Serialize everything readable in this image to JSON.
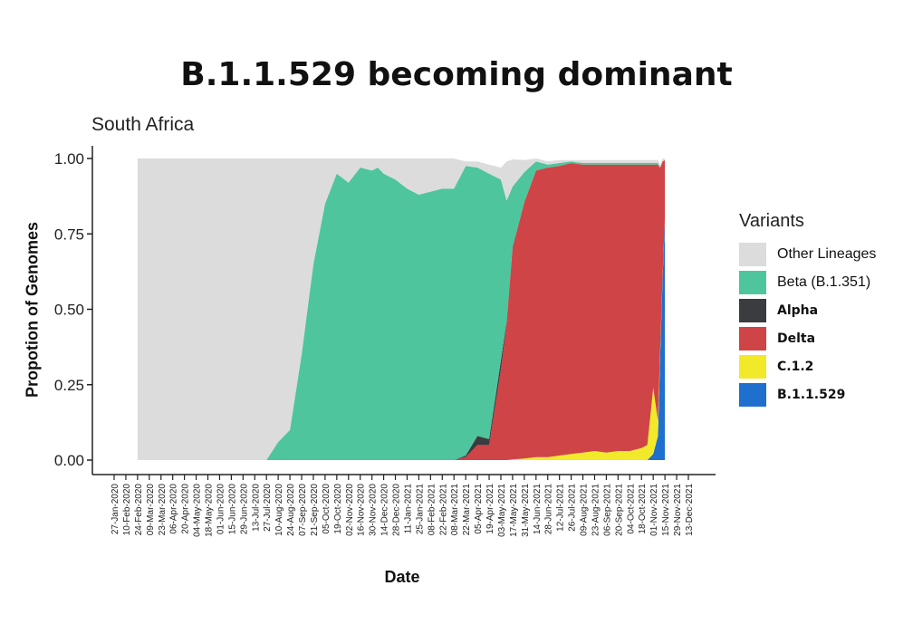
{
  "page": {
    "title": "B.1.1.529 becoming dominant"
  },
  "chart_data": {
    "type": "area",
    "title": "South Africa",
    "xlabel": "Date",
    "ylabel": "Propotion of Genomes",
    "ylim": [
      0,
      1
    ],
    "y_ticks": [
      "0.00",
      "0.25",
      "0.50",
      "0.75",
      "1.00"
    ],
    "x_ticks": [
      "27-Jan-2020",
      "10-Feb-2020",
      "24-Feb-2020",
      "09-Mar-2020",
      "23-Mar-2020",
      "06-Apr-2020",
      "20-Apr-2020",
      "04-May-2020",
      "18-May-2020",
      "01-Jun-2020",
      "15-Jun-2020",
      "29-Jun-2020",
      "13-Jul-2020",
      "27-Jul-2020",
      "10-Aug-2020",
      "24-Aug-2020",
      "07-Sep-2020",
      "21-Sep-2020",
      "05-Oct-2020",
      "19-Oct-2020",
      "02-Nov-2020",
      "16-Nov-2020",
      "30-Nov-2020",
      "14-Dec-2020",
      "28-Dec-2020",
      "11-Jan-2021",
      "25-Jan-2021",
      "08-Feb-2021",
      "22-Feb-2021",
      "08-Mar-2021",
      "22-Mar-2021",
      "05-Apr-2021",
      "19-Apr-2021",
      "03-May-2021",
      "17-May-2021",
      "31-May-2021",
      "14-Jun-2021",
      "28-Jun-2021",
      "12-Jul-2021",
      "26-Jul-2021",
      "09-Aug-2021",
      "23-Aug-2021",
      "06-Sep-2021",
      "20-Sep-2021",
      "04-Oct-2021",
      "18-Oct-2021",
      "01-Nov-2021",
      "15-Nov-2021",
      "29-Nov-2021",
      "13-Dec-2021"
    ],
    "legend_title": "Variants",
    "legend_position": "right",
    "grid": false,
    "x": [
      2,
      13,
      14,
      15,
      16,
      17,
      18,
      19,
      20,
      21,
      22,
      22.5,
      23,
      24,
      25,
      26,
      27,
      28,
      29,
      30,
      31,
      32,
      33,
      33.5,
      34,
      35,
      36,
      37,
      38,
      39,
      40,
      41,
      42,
      43,
      44,
      45,
      45.5,
      46,
      46.4,
      46.6,
      46.8,
      47
    ],
    "series": [
      {
        "name": "B.1.1.529",
        "color": "#1f6fcf",
        "values": [
          0,
          0,
          0,
          0,
          0,
          0,
          0,
          0,
          0,
          0,
          0,
          0,
          0,
          0,
          0,
          0,
          0,
          0,
          0,
          0,
          0,
          0,
          0,
          0,
          0,
          0,
          0,
          0,
          0,
          0,
          0,
          0,
          0,
          0,
          0,
          0,
          0,
          0.02,
          0.08,
          0.35,
          0.6,
          0.8
        ]
      },
      {
        "name": "C.1.2",
        "color": "#f2e92b",
        "values": [
          0,
          0,
          0,
          0,
          0,
          0,
          0,
          0,
          0,
          0,
          0,
          0,
          0,
          0,
          0,
          0,
          0,
          0,
          0,
          0,
          0,
          0,
          0,
          0,
          0.002,
          0.005,
          0.01,
          0.01,
          0.015,
          0.02,
          0.025,
          0.03,
          0.025,
          0.03,
          0.03,
          0.04,
          0.05,
          0.22,
          0.05,
          0.02,
          0.01,
          0.005
        ]
      },
      {
        "name": "Delta",
        "color": "#cf4446",
        "values": [
          0,
          0,
          0,
          0,
          0,
          0,
          0,
          0,
          0,
          0,
          0,
          0,
          0,
          0,
          0,
          0,
          0,
          0,
          0,
          0.01,
          0.05,
          0.05,
          0.3,
          0.45,
          0.7,
          0.85,
          0.95,
          0.96,
          0.96,
          0.965,
          0.955,
          0.95,
          0.955,
          0.95,
          0.95,
          0.94,
          0.93,
          0.74,
          0.85,
          0.6,
          0.38,
          0.19
        ]
      },
      {
        "name": "Alpha",
        "color": "#3a3c3f",
        "values": [
          0,
          0,
          0,
          0,
          0,
          0,
          0,
          0,
          0,
          0,
          0,
          0,
          0,
          0,
          0,
          0,
          0,
          0,
          0,
          0.005,
          0.03,
          0.02,
          0.03,
          0.01,
          0.005,
          0,
          0,
          0,
          0,
          0,
          0,
          0,
          0,
          0,
          0,
          0,
          0,
          0,
          0,
          0,
          0,
          0
        ]
      },
      {
        "name": "Beta (B.1.351)",
        "color": "#4ec59d",
        "values": [
          0,
          0,
          0.06,
          0.1,
          0.35,
          0.65,
          0.85,
          0.95,
          0.92,
          0.97,
          0.96,
          0.97,
          0.95,
          0.93,
          0.9,
          0.88,
          0.89,
          0.9,
          0.9,
          0.96,
          0.89,
          0.88,
          0.6,
          0.4,
          0.2,
          0.1,
          0.03,
          0.01,
          0.01,
          0.005,
          0.005,
          0.005,
          0.005,
          0.005,
          0.005,
          0.005,
          0.005,
          0.005,
          0.005,
          0,
          0,
          0
        ]
      },
      {
        "name": "Other Lineages",
        "color": "#dcdcdc",
        "values": [
          1,
          1,
          0.94,
          0.9,
          0.65,
          0.35,
          0.15,
          0.05,
          0.08,
          0.03,
          0.04,
          0.03,
          0.05,
          0.07,
          0.1,
          0.12,
          0.11,
          0.1,
          0.1,
          0.015,
          0.02,
          0.03,
          0.04,
          0.13,
          0.09,
          0.04,
          0.01,
          0.01,
          0.01,
          0.005,
          0.01,
          0.01,
          0.01,
          0.01,
          0.01,
          0.01,
          0.01,
          0.01,
          0.01,
          0.01,
          0.01,
          0.005
        ]
      }
    ]
  },
  "legend": {
    "items": [
      {
        "label": "Other Lineages",
        "color": "#dcdcdc",
        "bold": false
      },
      {
        "label": "Beta (B.1.351)",
        "color": "#4ec59d",
        "bold": false
      },
      {
        "label": "Alpha",
        "color": "#3a3c3f",
        "bold": true
      },
      {
        "label": "Delta",
        "color": "#cf4446",
        "bold": true
      },
      {
        "label": "C.1.2",
        "color": "#f2e92b",
        "bold": true
      },
      {
        "label": "B.1.1.529",
        "color": "#1f6fcf",
        "bold": true
      }
    ]
  }
}
